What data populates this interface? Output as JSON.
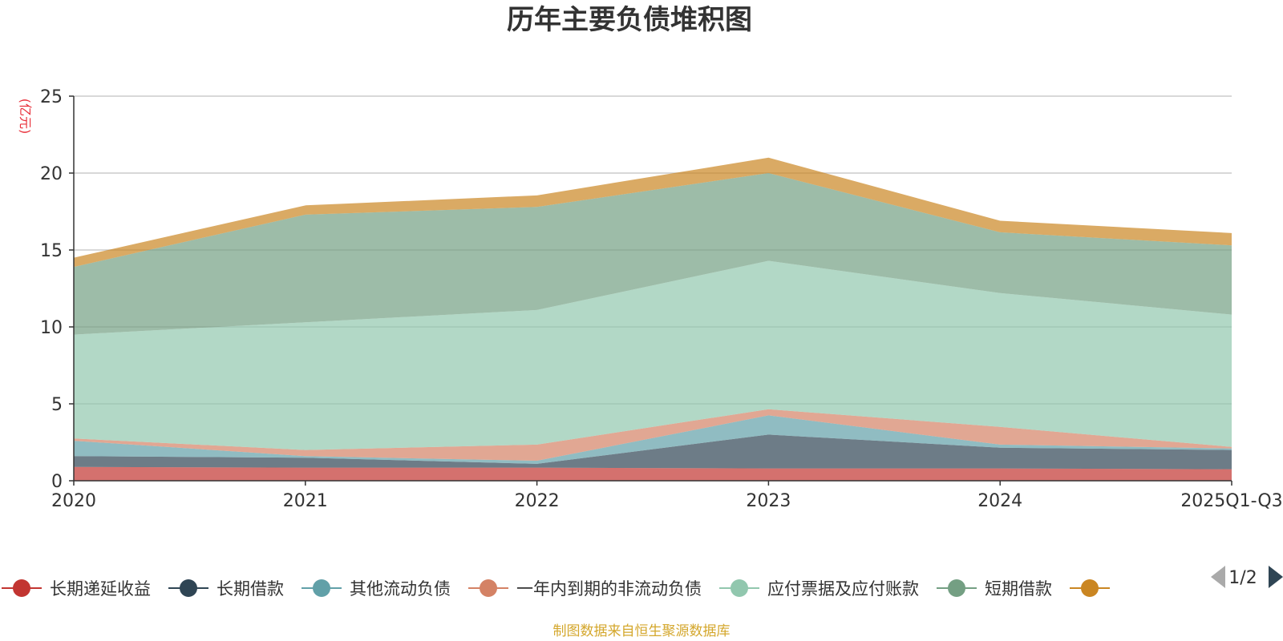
{
  "chart_data": {
    "type": "area",
    "stacked": true,
    "title": "历年主要负债堆积图",
    "unit_label": "(亿元)",
    "categories": [
      "2020",
      "2021",
      "2022",
      "2023",
      "2024",
      "2025Q1-Q3"
    ],
    "ylim": [
      0,
      25
    ],
    "yticks": [
      0,
      5,
      10,
      15,
      20,
      25
    ],
    "grid": true,
    "series": [
      {
        "name": "长期递延收益",
        "color": "#c23531",
        "values": [
          0.9,
          0.85,
          0.85,
          0.8,
          0.8,
          0.75
        ]
      },
      {
        "name": "长期借款",
        "color": "#2f4554",
        "values": [
          0.7,
          0.65,
          0.25,
          2.2,
          1.35,
          1.25
        ]
      },
      {
        "name": "其他流动负债",
        "color": "#61a0a8",
        "values": [
          1.0,
          0.1,
          0.2,
          1.25,
          0.2,
          0.1
        ]
      },
      {
        "name": "一年内到期的非流动负债",
        "color": "#d48265",
        "values": [
          0.15,
          0.4,
          1.05,
          0.4,
          1.15,
          0.1
        ]
      },
      {
        "name": "应付票据及应付账款",
        "color": "#91c7ae",
        "values": [
          6.75,
          8.3,
          8.75,
          9.65,
          8.7,
          8.6
        ]
      },
      {
        "name": "短期借款",
        "color": "#749f83",
        "values": [
          4.4,
          7.0,
          6.7,
          5.7,
          3.95,
          4.5
        ]
      },
      {
        "name": "",
        "color": "#ca8622",
        "values": [
          0.6,
          0.6,
          0.75,
          1.0,
          0.75,
          0.8
        ]
      }
    ]
  },
  "legend": {
    "page_indicator": "1/2"
  },
  "source_note": "制图数据来自恒生聚源数据库"
}
